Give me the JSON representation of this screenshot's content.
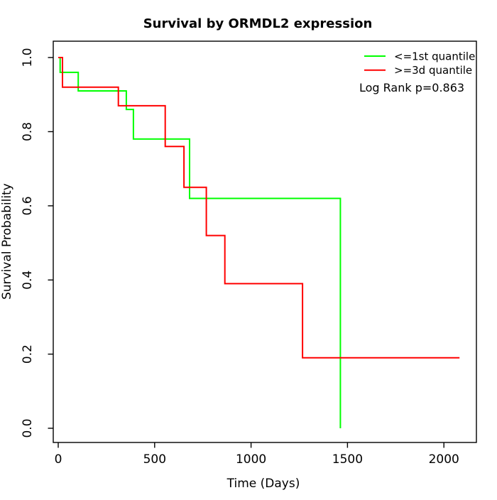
{
  "chart_data": {
    "type": "line",
    "subtype": "kaplan-meier-step",
    "title": "Survival by ORMDL2 expression",
    "xlabel": "Time (Days)",
    "ylabel": "Survival Probability",
    "xlim": [
      0,
      2150
    ],
    "ylim": [
      0.0,
      1.0
    ],
    "grid": false,
    "legend_position": "top-right",
    "annotation": "Log Rank p=0.863",
    "x_ticks": [
      {
        "value": 0,
        "label": "0"
      },
      {
        "value": 500,
        "label": "500"
      },
      {
        "value": 1000,
        "label": "1000"
      },
      {
        "value": 1500,
        "label": "1500"
      },
      {
        "value": 2000,
        "label": "2000"
      }
    ],
    "y_ticks": [
      {
        "value": 0.0,
        "label": "0.0"
      },
      {
        "value": 0.2,
        "label": "0.2"
      },
      {
        "value": 0.4,
        "label": "0.4"
      },
      {
        "value": 0.6,
        "label": "0.6"
      },
      {
        "value": 0.8,
        "label": "0.8"
      },
      {
        "value": 1.0,
        "label": "1.0"
      }
    ],
    "series": [
      {
        "name": "<=1st quantile",
        "color": "#00ff00",
        "steps": [
          [
            0,
            1.0
          ],
          [
            10,
            0.96
          ],
          [
            104,
            0.91
          ],
          [
            353,
            0.86
          ],
          [
            390,
            0.78
          ],
          [
            681,
            0.62
          ],
          [
            1463,
            0.0
          ]
        ],
        "end_time": 1463
      },
      {
        "name": ">=3d quantile",
        "color": "#ff0000",
        "steps": [
          [
            0,
            1.0
          ],
          [
            22,
            0.92
          ],
          [
            312,
            0.87
          ],
          [
            555,
            0.76
          ],
          [
            652,
            0.65
          ],
          [
            768,
            0.52
          ],
          [
            864,
            0.39
          ],
          [
            1267,
            0.19
          ]
        ],
        "end_time": 2081
      }
    ]
  }
}
